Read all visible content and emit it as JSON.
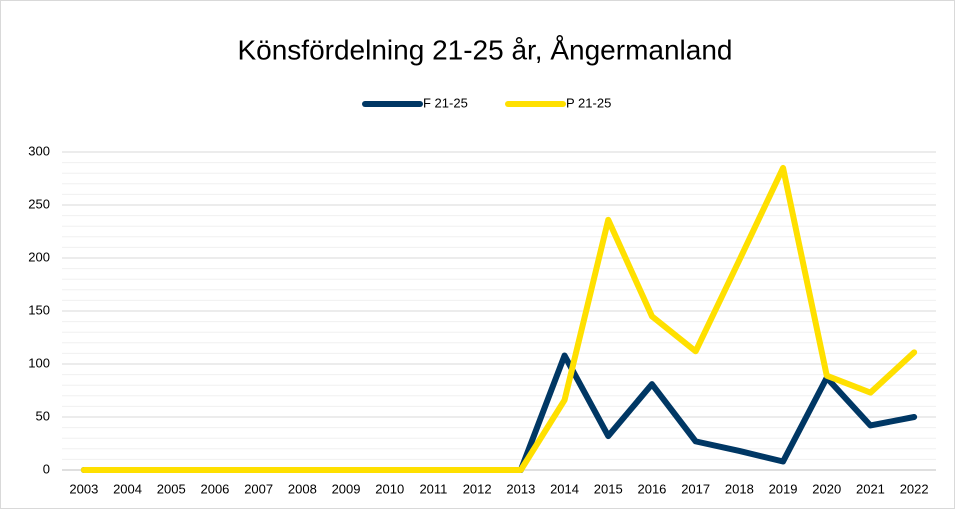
{
  "chart_data": {
    "type": "line",
    "title": "Könsfördelning 21-25 år, Ångermanland",
    "categories": [
      "2003",
      "2004",
      "2005",
      "2006",
      "2007",
      "2008",
      "2009",
      "2010",
      "2011",
      "2012",
      "2013",
      "2014",
      "2015",
      "2016",
      "2017",
      "2018",
      "2019",
      "2020",
      "2021",
      "2022"
    ],
    "series": [
      {
        "name": "F 21-25",
        "color": "#003764",
        "values": [
          0,
          0,
          0,
          0,
          0,
          0,
          0,
          0,
          0,
          0,
          0,
          108,
          32,
          81,
          27,
          18,
          8,
          87,
          42,
          50
        ]
      },
      {
        "name": "P 21-25",
        "color": "#ffe000",
        "values": [
          0,
          0,
          0,
          0,
          0,
          0,
          0,
          0,
          0,
          0,
          0,
          66,
          236,
          145,
          112,
          198,
          285,
          89,
          73,
          111
        ]
      }
    ],
    "ylim": [
      0,
      300
    ],
    "yticks": [
      0,
      50,
      100,
      150,
      200,
      250,
      300
    ],
    "grid": true,
    "minor_grid": true,
    "legend": "top"
  }
}
